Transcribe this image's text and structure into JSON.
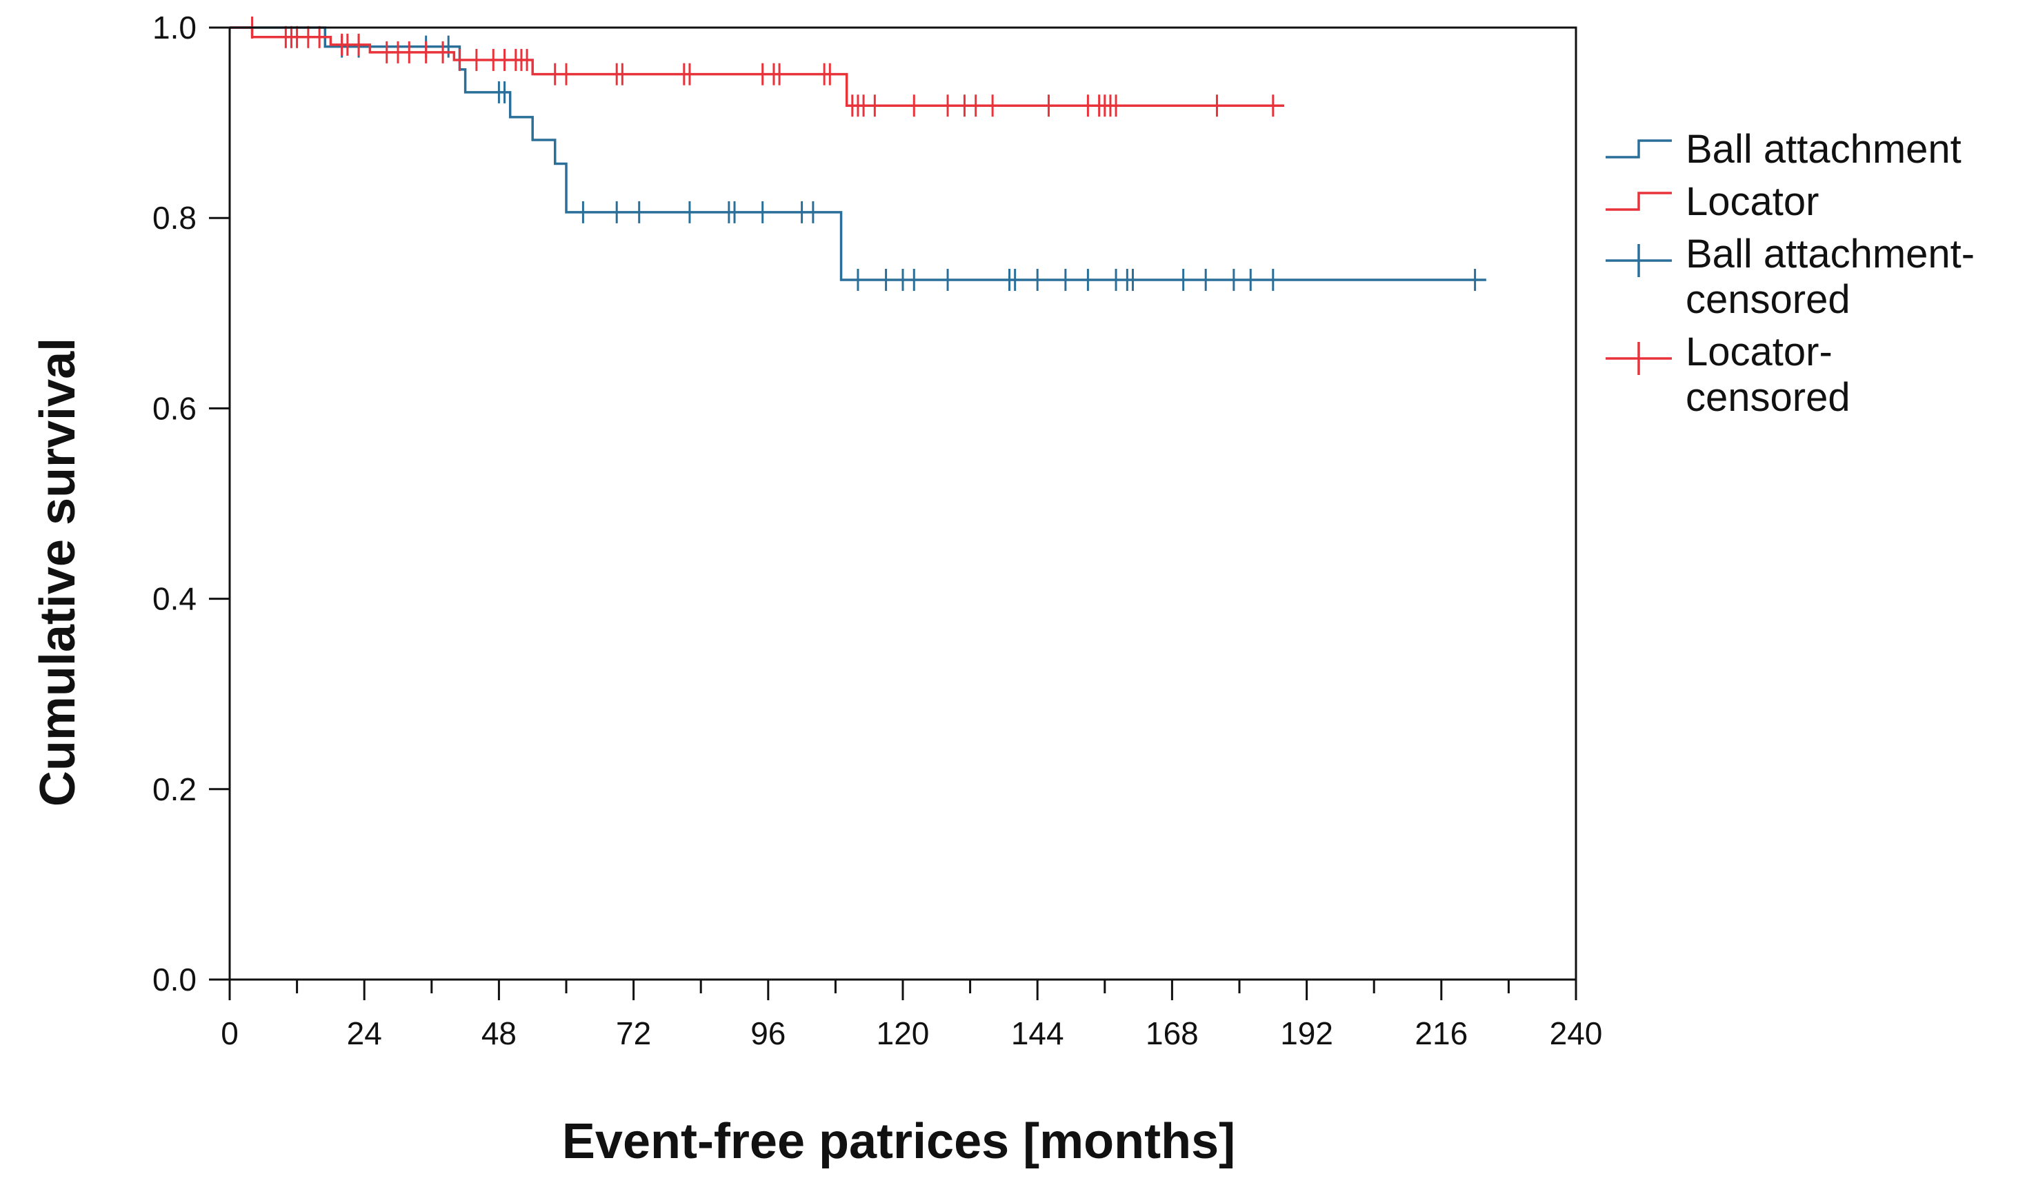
{
  "chart_data": {
    "type": "line",
    "title": "",
    "xlabel": "Event-free patrices [months]",
    "ylabel": "Cumulative survival",
    "xlim": [
      0,
      240
    ],
    "ylim": [
      0.0,
      1.0
    ],
    "x_ticks": [
      0,
      24,
      48,
      72,
      96,
      120,
      144,
      168,
      192,
      216,
      240
    ],
    "x_tick_labels": [
      "0",
      "24",
      "48",
      "72",
      "96",
      "120",
      "144",
      "168",
      "192",
      "216",
      "240"
    ],
    "y_ticks": [
      0.0,
      0.2,
      0.4,
      0.6,
      0.8,
      1.0
    ],
    "y_tick_labels": [
      "0.0",
      "0.2",
      "0.4",
      "0.6",
      "0.8",
      "1.0"
    ],
    "grid": false,
    "legend_position": "right",
    "legend": [
      {
        "label": "Ball attachment",
        "kind": "step",
        "color": "#2a6f99"
      },
      {
        "label": "Locator",
        "kind": "step",
        "color": "#e8333a"
      },
      {
        "label": "Ball attachment-\ncensored",
        "kind": "censor",
        "color": "#2a6f99"
      },
      {
        "label": "Locator-\ncensored",
        "kind": "censor",
        "color": "#e8333a"
      }
    ],
    "series": [
      {
        "name": "Ball attachment",
        "color": "#2a6f99",
        "steps": [
          [
            0,
            1.0
          ],
          [
            17,
            0.98
          ],
          [
            41,
            0.956
          ],
          [
            42,
            0.932
          ],
          [
            50,
            0.906
          ],
          [
            54,
            0.882
          ],
          [
            58,
            0.857
          ],
          [
            60,
            0.806
          ],
          [
            109,
            0.735
          ],
          [
            224,
            0.735
          ]
        ],
        "censored": [
          [
            20,
            0.98
          ],
          [
            23,
            0.98
          ],
          [
            35,
            0.98
          ],
          [
            39,
            0.98
          ],
          [
            48,
            0.932
          ],
          [
            49,
            0.932
          ],
          [
            63,
            0.806
          ],
          [
            69,
            0.806
          ],
          [
            73,
            0.806
          ],
          [
            82,
            0.806
          ],
          [
            89,
            0.806
          ],
          [
            90,
            0.806
          ],
          [
            95,
            0.806
          ],
          [
            102,
            0.806
          ],
          [
            104,
            0.806
          ],
          [
            112,
            0.735
          ],
          [
            117,
            0.735
          ],
          [
            120,
            0.735
          ],
          [
            122,
            0.735
          ],
          [
            128,
            0.735
          ],
          [
            139,
            0.735
          ],
          [
            140,
            0.735
          ],
          [
            144,
            0.735
          ],
          [
            149,
            0.735
          ],
          [
            153,
            0.735
          ],
          [
            158,
            0.735
          ],
          [
            160,
            0.735
          ],
          [
            161,
            0.735
          ],
          [
            170,
            0.735
          ],
          [
            174,
            0.735
          ],
          [
            179,
            0.735
          ],
          [
            182,
            0.735
          ],
          [
            186,
            0.735
          ],
          [
            222,
            0.735
          ]
        ]
      },
      {
        "name": "Locator",
        "color": "#e8333a",
        "steps": [
          [
            0,
            1.0
          ],
          [
            4,
            0.99
          ],
          [
            18,
            0.982
          ],
          [
            25,
            0.974
          ],
          [
            40,
            0.966
          ],
          [
            54,
            0.951
          ],
          [
            110,
            0.918
          ],
          [
            188,
            0.918
          ]
        ],
        "censored": [
          [
            4,
            1.0
          ],
          [
            10,
            0.99
          ],
          [
            11,
            0.99
          ],
          [
            12,
            0.99
          ],
          [
            14,
            0.99
          ],
          [
            16,
            0.99
          ],
          [
            20,
            0.982
          ],
          [
            21,
            0.982
          ],
          [
            23,
            0.982
          ],
          [
            28,
            0.974
          ],
          [
            30,
            0.974
          ],
          [
            32,
            0.974
          ],
          [
            35,
            0.974
          ],
          [
            38,
            0.974
          ],
          [
            41,
            0.966
          ],
          [
            44,
            0.966
          ],
          [
            47,
            0.966
          ],
          [
            49,
            0.966
          ],
          [
            51,
            0.966
          ],
          [
            52,
            0.966
          ],
          [
            53,
            0.966
          ],
          [
            58,
            0.951
          ],
          [
            60,
            0.951
          ],
          [
            69,
            0.951
          ],
          [
            70,
            0.951
          ],
          [
            81,
            0.951
          ],
          [
            82,
            0.951
          ],
          [
            95,
            0.951
          ],
          [
            97,
            0.951
          ],
          [
            98,
            0.951
          ],
          [
            106,
            0.951
          ],
          [
            107,
            0.951
          ],
          [
            111,
            0.918
          ],
          [
            112,
            0.918
          ],
          [
            113,
            0.918
          ],
          [
            115,
            0.918
          ],
          [
            122,
            0.918
          ],
          [
            128,
            0.918
          ],
          [
            131,
            0.918
          ],
          [
            133,
            0.918
          ],
          [
            136,
            0.918
          ],
          [
            146,
            0.918
          ],
          [
            153,
            0.918
          ],
          [
            155,
            0.918
          ],
          [
            156,
            0.918
          ],
          [
            157,
            0.918
          ],
          [
            158,
            0.918
          ],
          [
            176,
            0.918
          ],
          [
            186,
            0.918
          ]
        ]
      }
    ]
  }
}
